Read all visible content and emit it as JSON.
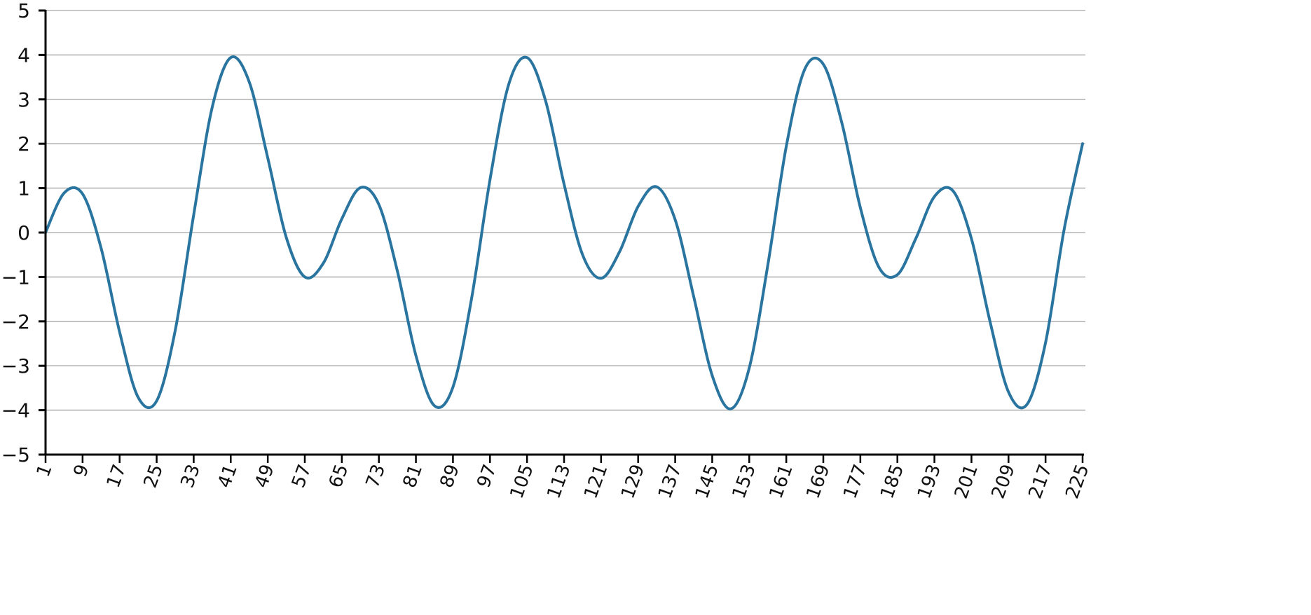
{
  "chart_data": {
    "type": "line",
    "title": "",
    "xlabel": "",
    "ylabel": "",
    "ylim": [
      -5,
      5
    ],
    "xlim": [
      1,
      225
    ],
    "grid": "horizontal",
    "legend": "none",
    "y_ticks": [
      "5",
      "4",
      "3",
      "2",
      "1",
      "0",
      "−1",
      "−2",
      "−3",
      "−4",
      "−5"
    ],
    "y_tick_values": [
      5,
      4,
      3,
      2,
      1,
      0,
      -1,
      -2,
      -3,
      -4,
      -5
    ],
    "x_ticks": [
      "1",
      "9",
      "17",
      "25",
      "33",
      "41",
      "49",
      "57",
      "65",
      "73",
      "81",
      "89",
      "97",
      "105",
      "113",
      "121",
      "129",
      "137",
      "145",
      "153",
      "161",
      "169",
      "177",
      "185",
      "193",
      "201",
      "209",
      "217",
      "225"
    ],
    "series": [
      {
        "color": "#2a75a0",
        "x": [
          1,
          5,
          9,
          13,
          17,
          21,
          25,
          29,
          33,
          37,
          41,
          45,
          49,
          53,
          57,
          61,
          65,
          69,
          73,
          77,
          81,
          85,
          89,
          93,
          97,
          101,
          105,
          109,
          113,
          117,
          121,
          125,
          129,
          133,
          137,
          141,
          145,
          149,
          153,
          157,
          161,
          165,
          169,
          173,
          177,
          181,
          185,
          189,
          193,
          197,
          201,
          205,
          209,
          213,
          217,
          221,
          225
        ],
        "y": [
          0,
          0.89,
          0.87,
          -0.35,
          -2.24,
          -3.71,
          -3.79,
          -2.21,
          0.4,
          2.82,
          3.94,
          3.39,
          1.68,
          -0.11,
          -1.0,
          -0.69,
          0.31,
          1.01,
          0.63,
          -0.87,
          -2.77,
          -3.9,
          -3.48,
          -1.5,
          1.19,
          3.32,
          3.94,
          2.97,
          1.09,
          -0.5,
          -1.03,
          -0.43,
          0.59,
          1.03,
          0.29,
          -1.44,
          -3.22,
          -3.97,
          -3.05,
          -0.74,
          1.94,
          3.68,
          3.79,
          2.47,
          0.56,
          -0.78,
          -0.95,
          -0.13,
          0.81,
          0.94,
          -0.14,
          -2.0,
          -3.59,
          -3.87,
          -2.48,
          0.06,
          2.0
        ]
      }
    ]
  }
}
